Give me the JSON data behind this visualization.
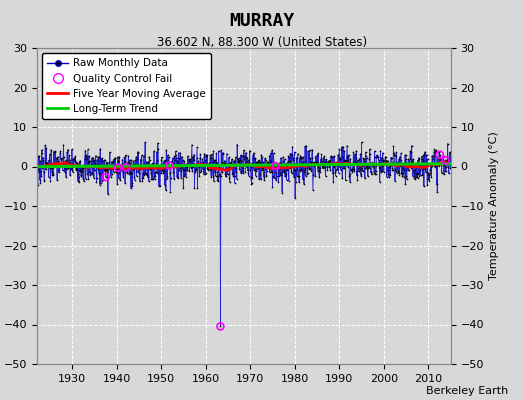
{
  "title": "MURRAY",
  "subtitle": "36.602 N, 88.300 W (United States)",
  "ylabel": "Temperature Anomaly (°C)",
  "credit": "Berkeley Earth",
  "year_start": 1920,
  "year_end": 2016,
  "ylim": [
    -50,
    30
  ],
  "yticks": [
    -50,
    -40,
    -30,
    -20,
    -10,
    0,
    10,
    20,
    30
  ],
  "xticks": [
    1930,
    1940,
    1950,
    1960,
    1970,
    1980,
    1990,
    2000,
    2010
  ],
  "xlim": [
    1922,
    2015
  ],
  "background_color": "#d8d8d8",
  "plot_bg_color": "#d8d8d8",
  "raw_line_color": "#0000cc",
  "raw_dot_color": "#000000",
  "qc_fail_color": "#ff00ff",
  "moving_avg_color": "#ff0000",
  "trend_color": "#00cc00",
  "noise_std": 2.2,
  "outlier_year": 1963.25,
  "outlier_value": -40.5,
  "seed": 7,
  "qc_years": [
    1937.5,
    1940.3,
    1942.1,
    1951.8,
    1963.25,
    1975.6,
    2012.5,
    2013.8
  ]
}
